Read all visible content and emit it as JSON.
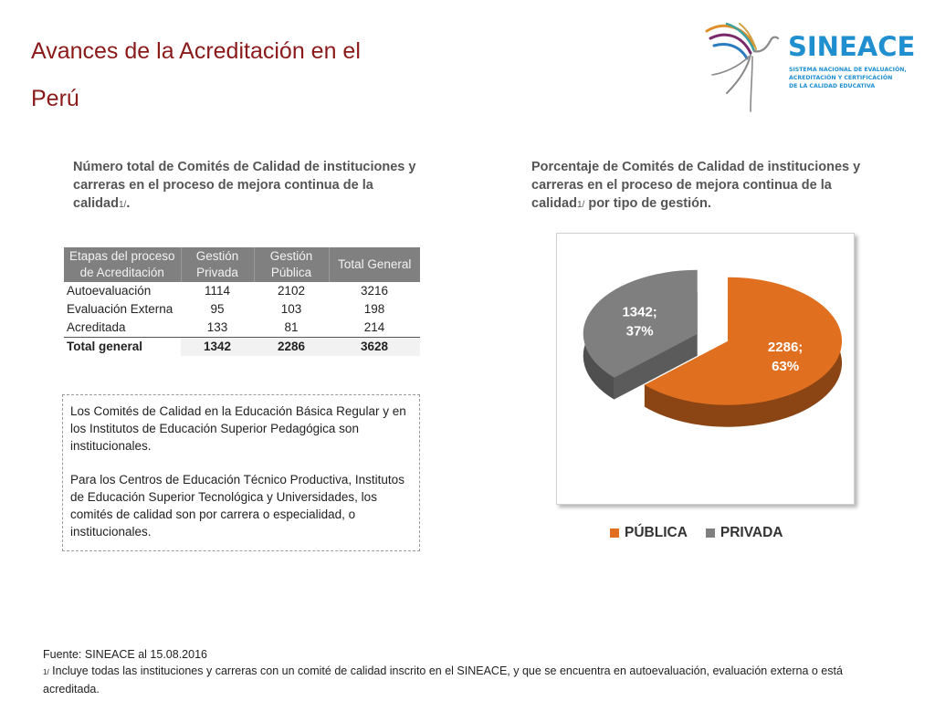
{
  "header": {
    "title_line1": "Avances de la Acreditación en el",
    "title_line2": "Perú",
    "logo": {
      "name": "SINEACE",
      "sub_line1": "SISTEMA NACIONAL DE EVALUACIÓN,",
      "sub_line2": "ACREDITACIÓN Y CERTIFICACIÓN",
      "sub_line3": "DE LA CALIDAD EDUCATIVA"
    }
  },
  "left": {
    "heading": "Número total de Comités de Calidad de instituciones y carreras  en el proceso de mejora continua de la calidad",
    "heading_note": "1/",
    "heading_end": ".",
    "table": {
      "headers": [
        "Etapas del proceso de Acreditación",
        "Gestión Privada",
        "Gestión Pública",
        "Total General"
      ],
      "rows": [
        [
          "Autoevaluación",
          "1114",
          "2102",
          "3216"
        ],
        [
          "Evaluación Externa",
          "95",
          "103",
          "198"
        ],
        [
          "Acreditada",
          "133",
          "81",
          "214"
        ]
      ],
      "total": [
        "Total general",
        "1342",
        "2286",
        "3628"
      ]
    },
    "note_p1": "Los Comités de Calidad en la Educación Básica Regular y en los Institutos de Educación Superior Pedagógica son institucionales.",
    "note_p2": "Para los Centros de Educación Técnico Productiva, Institutos de Educación Superior Tecnológica y Universidades, los comités de calidad son por carrera o especialidad, o institucionales."
  },
  "right": {
    "heading": "Porcentaje de Comités de Calidad de instituciones y carreras  en el proceso de mejora continua de la calidad",
    "heading_note": "1/",
    "heading_end": " por tipo de gestión."
  },
  "chart_data": {
    "type": "pie",
    "style": "3d-exploded",
    "slices": [
      {
        "label": "PÚBLICA",
        "value": 2286,
        "percent": 63,
        "color": "#e07020",
        "data_label": "2286;",
        "data_label_pct": "63%"
      },
      {
        "label": "PRIVADA",
        "value": 1342,
        "percent": 37,
        "color": "#7f7f7f",
        "data_label": "1342;",
        "data_label_pct": "37%"
      }
    ],
    "legend_position": "bottom"
  },
  "footer": {
    "source": "Fuente: SINEACE al  15.08.2016",
    "note_mark": "1/",
    "note_text": " Incluye todas las instituciones y carreras  con un comité de calidad inscrito en el SINEACE, y que se encuentra en autoevaluación, evaluación externa o está acreditada."
  }
}
